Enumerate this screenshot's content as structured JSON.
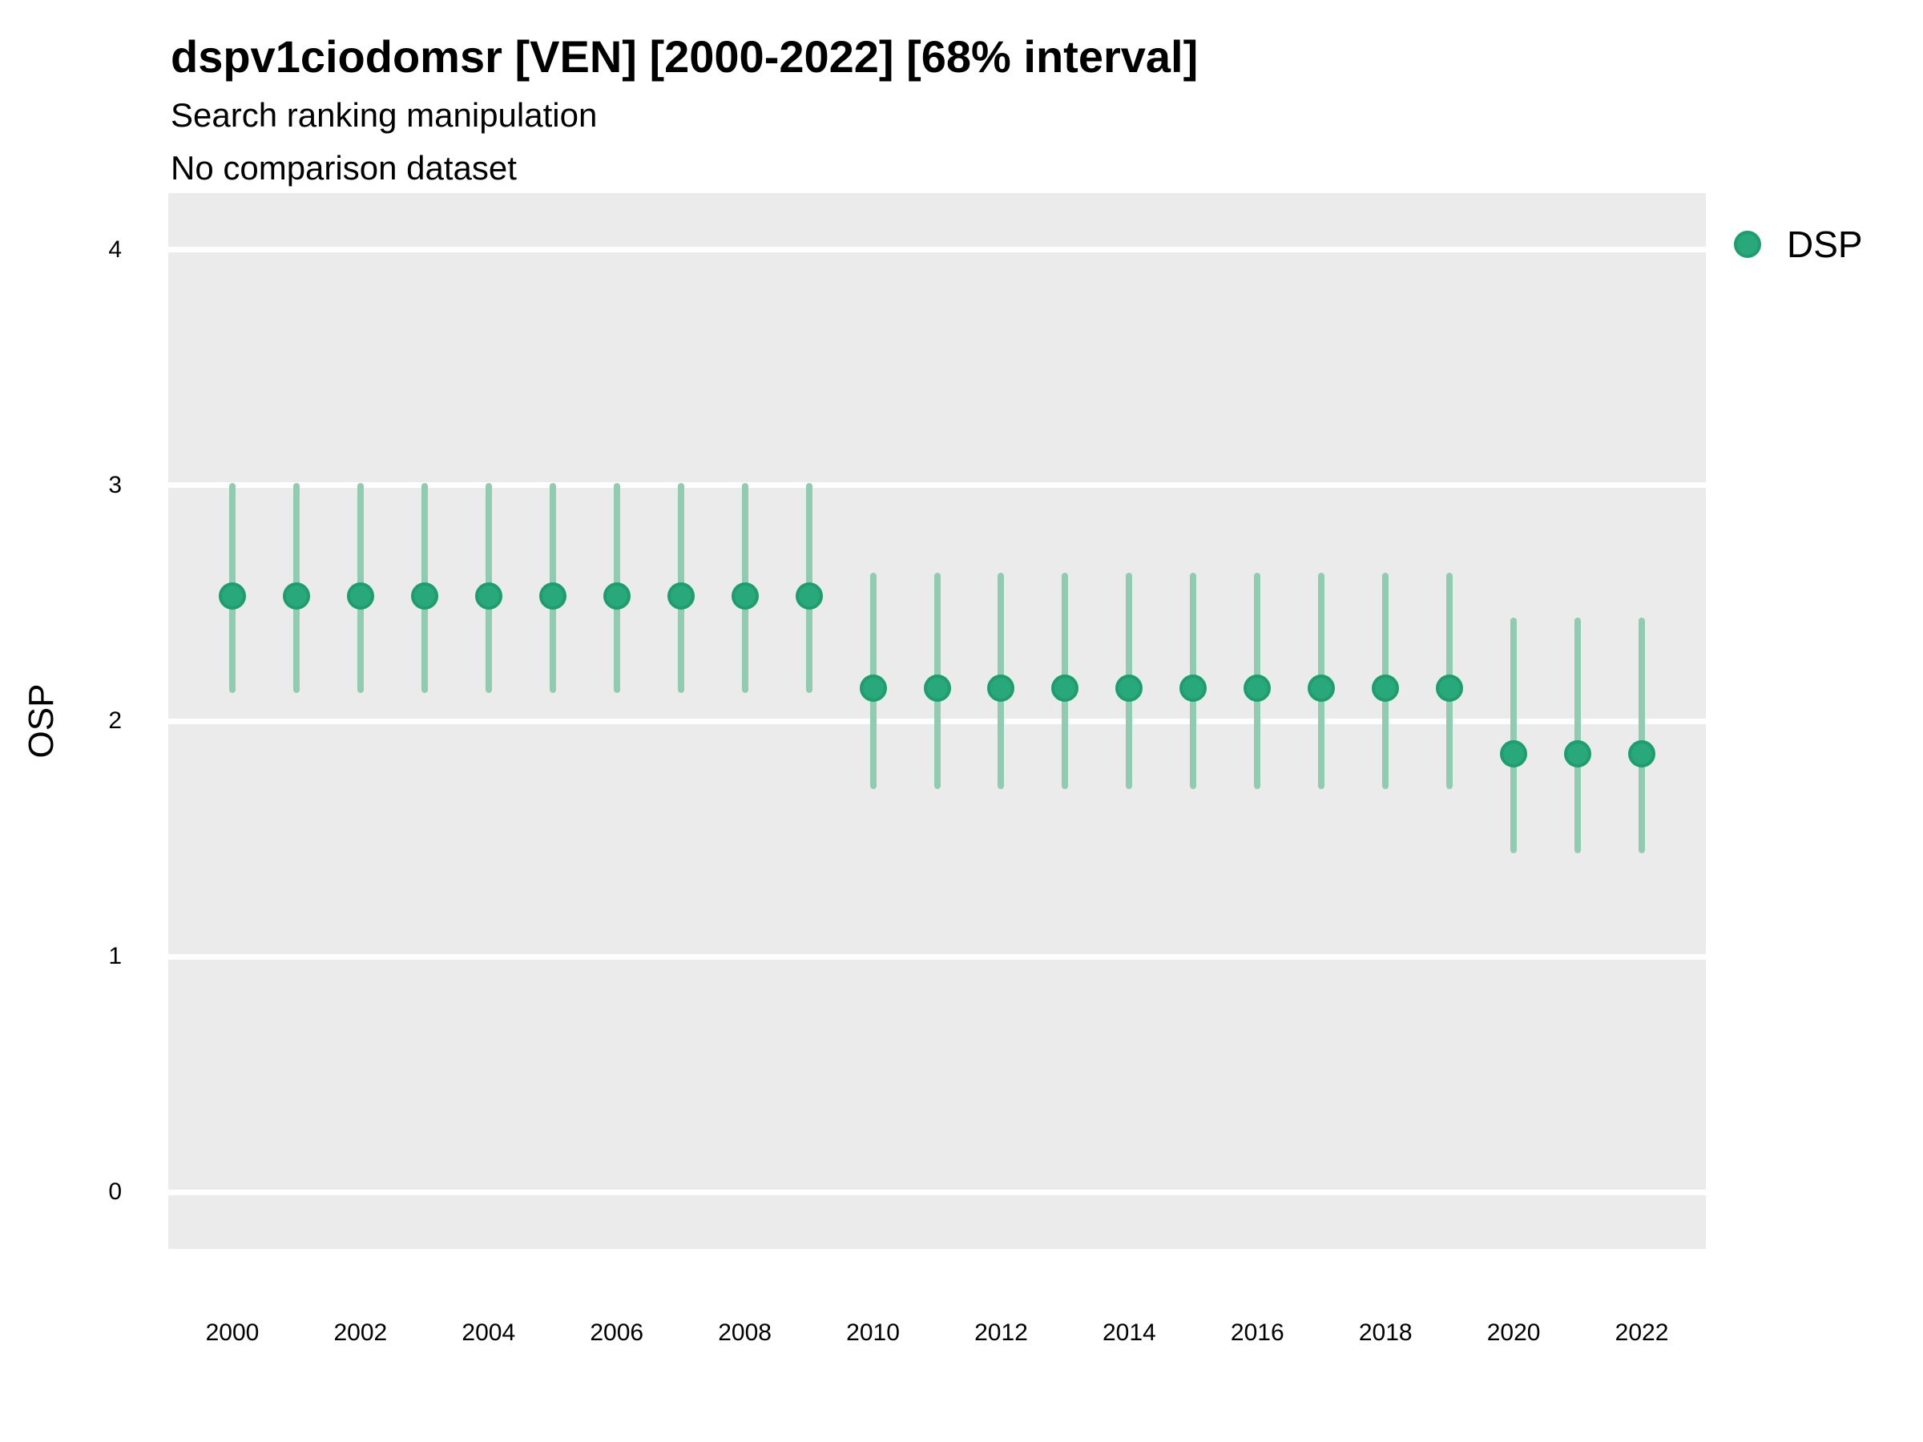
{
  "header": {
    "title": "dspv1ciodomsr [VEN] [2000-2022] [68% interval]",
    "subtitle1": "Search ranking manipulation",
    "subtitle2": "No comparison dataset"
  },
  "legend": {
    "label": "DSP",
    "marker": "circle-icon"
  },
  "colors": {
    "point_fill": "#29a87b",
    "point_stroke": "#1d9e6e",
    "interval": "#8fccb2",
    "panel_bg": "#ebebeb",
    "gridline": "#ffffff",
    "text": "#000000"
  },
  "chart_data": {
    "type": "scatter",
    "style": "pointrange",
    "title": "dspv1ciodomsr [VEN] [2000-2022] [68% interval]",
    "subtitle": [
      "Search ranking manipulation",
      "No comparison dataset"
    ],
    "xlabel": "",
    "ylabel": "OSP",
    "interval_level": "68%",
    "xlim": [
      1999,
      2023
    ],
    "ylim": [
      -0.24,
      4.24
    ],
    "x_ticks": [
      2000,
      2002,
      2004,
      2006,
      2008,
      2010,
      2012,
      2014,
      2016,
      2018,
      2020,
      2022
    ],
    "y_ticks": [
      0,
      1,
      2,
      3,
      4
    ],
    "grid": "horizontal-major-only",
    "legend_position": "right-top",
    "series": [
      {
        "name": "DSP",
        "points": [
          {
            "year": 2000,
            "mid": 2.53,
            "lo": 2.12,
            "hi": 3.01
          },
          {
            "year": 2001,
            "mid": 2.53,
            "lo": 2.12,
            "hi": 3.01
          },
          {
            "year": 2002,
            "mid": 2.53,
            "lo": 2.12,
            "hi": 3.01
          },
          {
            "year": 2003,
            "mid": 2.53,
            "lo": 2.12,
            "hi": 3.01
          },
          {
            "year": 2004,
            "mid": 2.53,
            "lo": 2.12,
            "hi": 3.01
          },
          {
            "year": 2005,
            "mid": 2.53,
            "lo": 2.12,
            "hi": 3.01
          },
          {
            "year": 2006,
            "mid": 2.53,
            "lo": 2.12,
            "hi": 3.01
          },
          {
            "year": 2007,
            "mid": 2.53,
            "lo": 2.12,
            "hi": 3.01
          },
          {
            "year": 2008,
            "mid": 2.53,
            "lo": 2.12,
            "hi": 3.01
          },
          {
            "year": 2009,
            "mid": 2.53,
            "lo": 2.12,
            "hi": 3.01
          },
          {
            "year": 2010,
            "mid": 2.14,
            "lo": 1.71,
            "hi": 2.63
          },
          {
            "year": 2011,
            "mid": 2.14,
            "lo": 1.71,
            "hi": 2.63
          },
          {
            "year": 2012,
            "mid": 2.14,
            "lo": 1.71,
            "hi": 2.63
          },
          {
            "year": 2013,
            "mid": 2.14,
            "lo": 1.71,
            "hi": 2.63
          },
          {
            "year": 2014,
            "mid": 2.14,
            "lo": 1.71,
            "hi": 2.63
          },
          {
            "year": 2015,
            "mid": 2.14,
            "lo": 1.71,
            "hi": 2.63
          },
          {
            "year": 2016,
            "mid": 2.14,
            "lo": 1.71,
            "hi": 2.63
          },
          {
            "year": 2017,
            "mid": 2.14,
            "lo": 1.71,
            "hi": 2.63
          },
          {
            "year": 2018,
            "mid": 2.14,
            "lo": 1.71,
            "hi": 2.63
          },
          {
            "year": 2019,
            "mid": 2.14,
            "lo": 1.71,
            "hi": 2.63
          },
          {
            "year": 2020,
            "mid": 1.86,
            "lo": 1.44,
            "hi": 2.44
          },
          {
            "year": 2021,
            "mid": 1.86,
            "lo": 1.44,
            "hi": 2.44
          },
          {
            "year": 2022,
            "mid": 1.86,
            "lo": 1.44,
            "hi": 2.44
          }
        ]
      }
    ]
  }
}
